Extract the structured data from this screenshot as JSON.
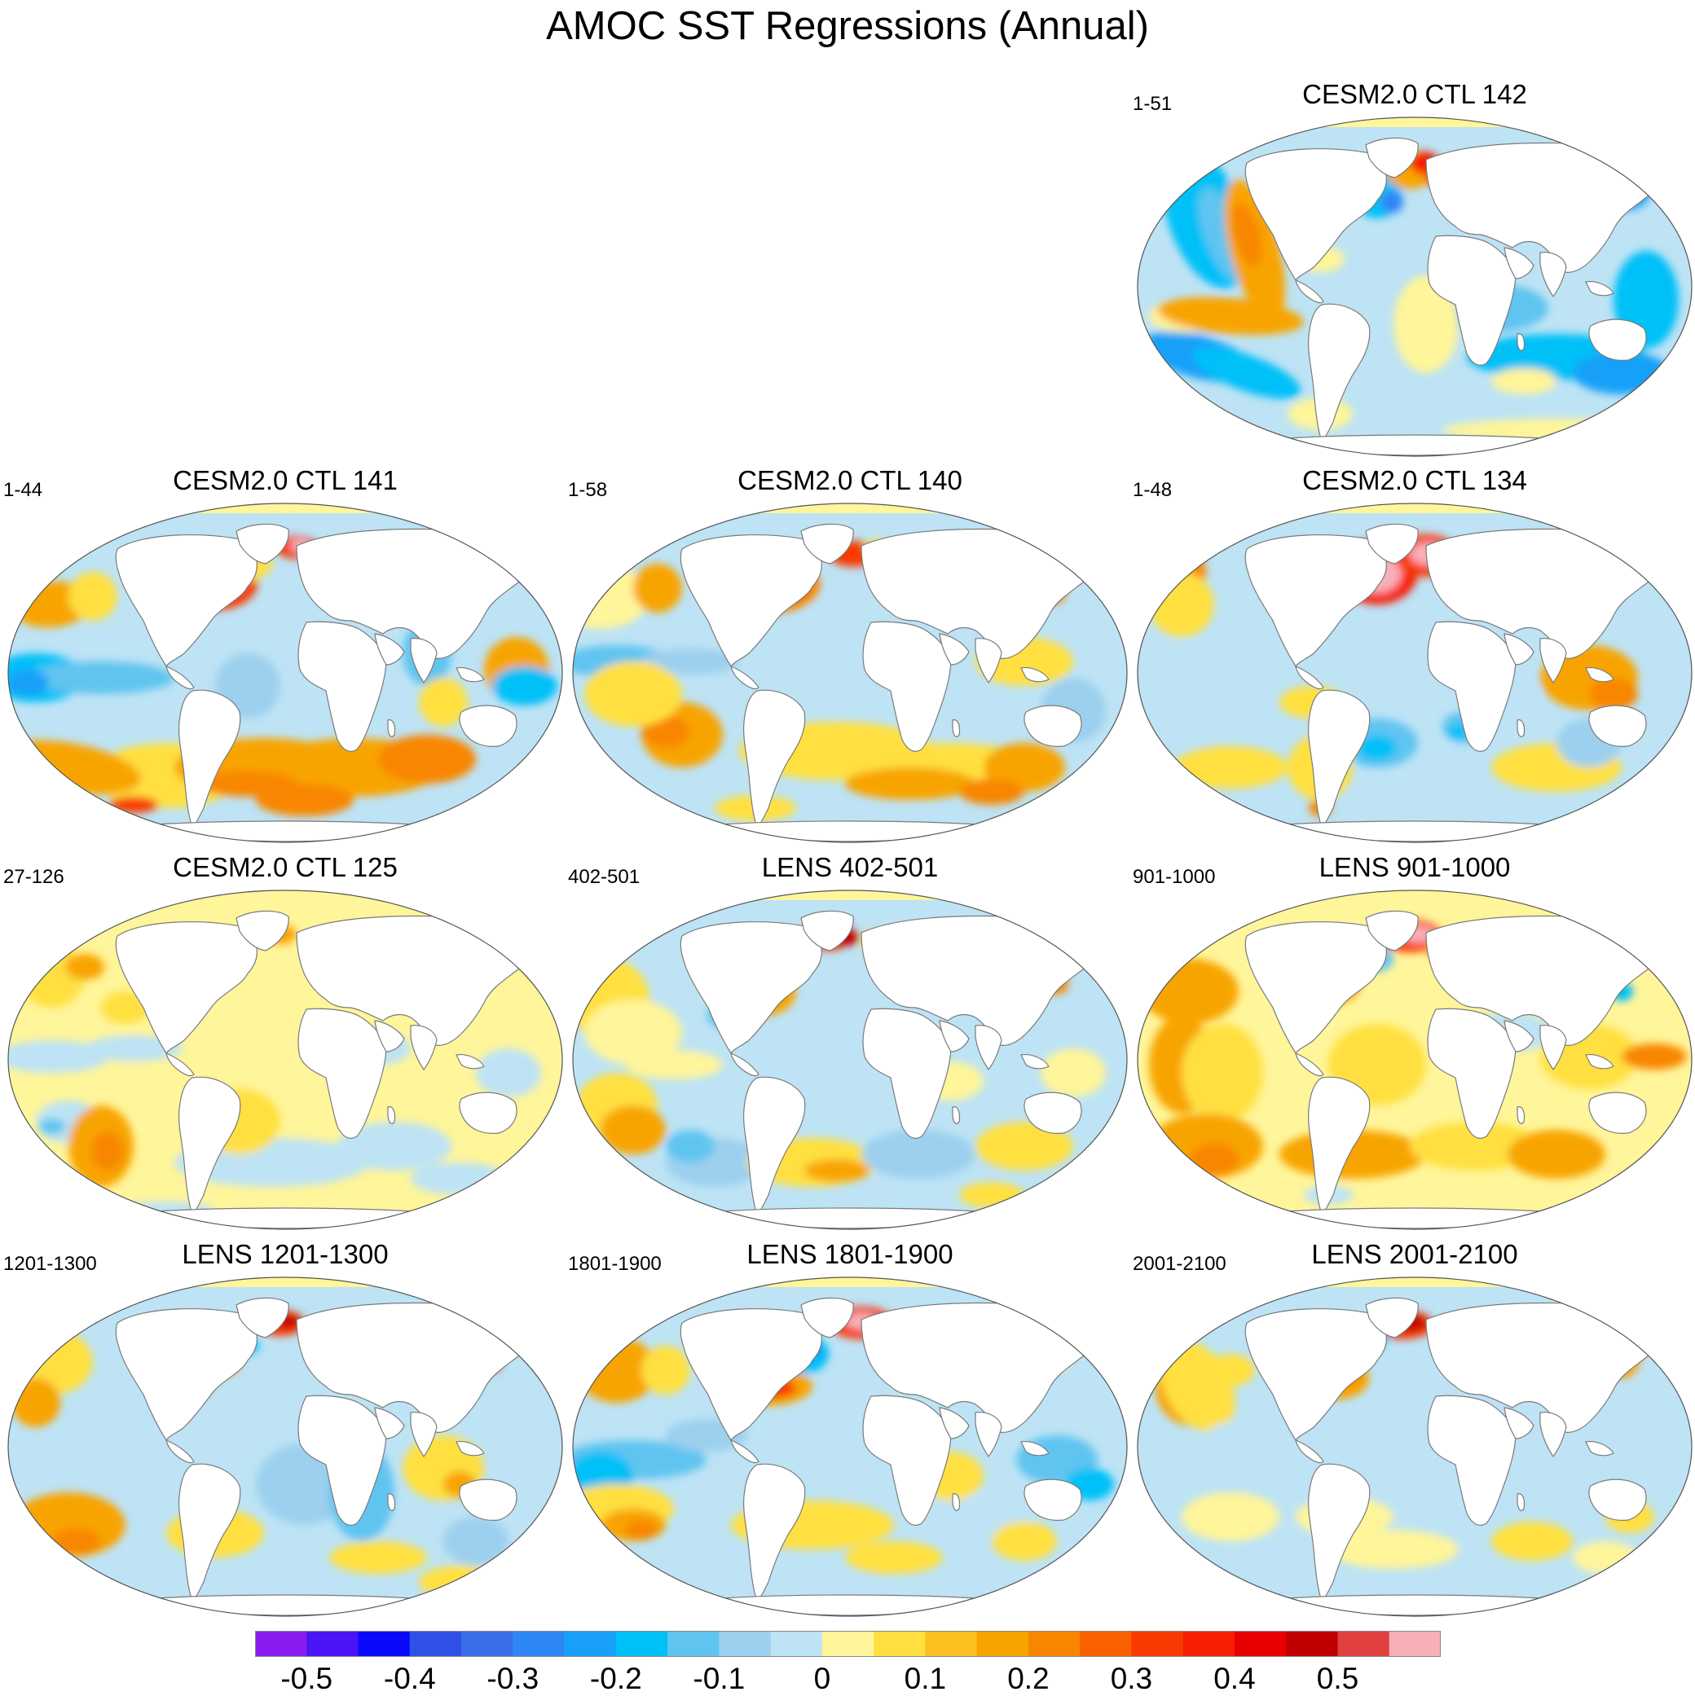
{
  "title": "AMOC SST Regressions (Annual)",
  "panels": [
    {
      "title": "CESM2.0 CTL 142",
      "range": "1-51",
      "pattern": "ctl142"
    },
    {
      "title": "CESM2.0 CTL 141",
      "range": "1-44",
      "pattern": "ctl141"
    },
    {
      "title": "CESM2.0 CTL 140",
      "range": "1-58",
      "pattern": "ctl140"
    },
    {
      "title": "CESM2.0 CTL 134",
      "range": "1-48",
      "pattern": "ctl134"
    },
    {
      "title": "CESM2.0 CTL 125",
      "range": "27-126",
      "pattern": "ctl125"
    },
    {
      "title": "LENS 402-501",
      "range": "402-501",
      "pattern": "lens402"
    },
    {
      "title": "LENS 901-1000",
      "range": "901-1000",
      "pattern": "lens901"
    },
    {
      "title": "LENS 1201-1300",
      "range": "1201-1300",
      "pattern": "lens1201"
    },
    {
      "title": "LENS 1801-1900",
      "range": "1801-1900",
      "pattern": "lens1801"
    },
    {
      "title": "LENS 2001-2100",
      "range": "2001-2100",
      "pattern": "lens2001"
    }
  ],
  "colorbar": {
    "colors": [
      "#8a1cf0",
      "#4a14f5",
      "#0a0afa",
      "#3050e8",
      "#3a6ee8",
      "#2f86f5",
      "#18a0f8",
      "#00c0f8",
      "#60c4f0",
      "#9cd0ee",
      "#bde3f5",
      "#fff59a",
      "#ffe040",
      "#fcc020",
      "#f8a400",
      "#f88600",
      "#f86000",
      "#f83a00",
      "#f81e00",
      "#e80000",
      "#c00000",
      "#e04040",
      "#f8b0b8"
    ],
    "tick_labels": [
      "-0.5",
      "-0.4",
      "-0.3",
      "-0.2",
      "-0.1",
      "0",
      "0.1",
      "0.2",
      "0.3",
      "0.4",
      "0.5"
    ]
  }
}
